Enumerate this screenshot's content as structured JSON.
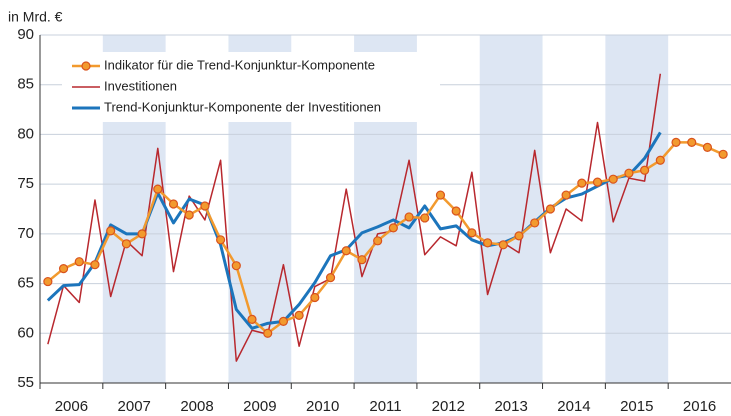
{
  "chart_data": {
    "type": "line",
    "y_axis_label": "in Mrd. €",
    "xlim": [
      2006,
      2017
    ],
    "xticks": [
      2006,
      2007,
      2008,
      2009,
      2010,
      2011,
      2012,
      2013,
      2014,
      2015,
      2016
    ],
    "ylim": [
      55,
      90
    ],
    "yticks": [
      55,
      60,
      65,
      70,
      75,
      80,
      85,
      90
    ],
    "grid": true,
    "band_color": "#dde6f3",
    "x": [
      2006.125,
      2006.375,
      2006.625,
      2006.875,
      2007.125,
      2007.375,
      2007.625,
      2007.875,
      2008.125,
      2008.375,
      2008.625,
      2008.875,
      2009.125,
      2009.375,
      2009.625,
      2009.875,
      2010.125,
      2010.375,
      2010.625,
      2010.875,
      2011.125,
      2011.375,
      2011.625,
      2011.875,
      2012.125,
      2012.375,
      2012.625,
      2012.875,
      2013.125,
      2013.375,
      2013.625,
      2013.875,
      2014.125,
      2014.375,
      2014.625,
      2014.875,
      2015.125,
      2015.375,
      2015.625,
      2015.875,
      2016.125,
      2016.375,
      2016.625,
      2016.875
    ],
    "series": [
      {
        "name": "Indikator für die Trend-Konjunktur-Komponente",
        "color": "#f29a2e",
        "marker_edge": "#d9531e",
        "width": 2.5,
        "markers": true,
        "values": [
          65.2,
          66.5,
          67.2,
          66.9,
          70.3,
          69.0,
          70.0,
          74.5,
          73.0,
          71.9,
          72.8,
          69.4,
          66.8,
          61.4,
          60.0,
          61.2,
          61.8,
          63.6,
          65.6,
          68.3,
          67.4,
          69.3,
          70.6,
          71.7,
          71.6,
          73.9,
          72.3,
          70.1,
          69.1,
          68.9,
          69.8,
          71.1,
          72.5,
          73.9,
          75.1,
          75.2,
          75.5,
          76.1,
          76.4,
          77.4,
          79.2,
          79.2,
          78.7,
          78.0
        ]
      },
      {
        "name": "Investitionen",
        "color": "#b8282e",
        "width": 1.5,
        "markers": false,
        "values": [
          58.9,
          64.8,
          63.1,
          73.4,
          63.7,
          69.3,
          67.8,
          78.6,
          66.2,
          73.8,
          71.4,
          77.4,
          57.2,
          60.3,
          59.9,
          66.9,
          58.7,
          64.7,
          65.5,
          74.5,
          65.7,
          70.0,
          70.3,
          77.4,
          67.9,
          69.7,
          68.8,
          76.2,
          63.9,
          69.1,
          68.1,
          78.4,
          68.1,
          72.5,
          71.3,
          81.2,
          71.2,
          75.6,
          75.3,
          86.1,
          null,
          null,
          null,
          null
        ]
      },
      {
        "name": "Trend-Konjunktur-Komponente der Investitionen",
        "color": "#1c75bc",
        "width": 3,
        "markers": false,
        "values": [
          63.3,
          64.8,
          64.9,
          67.1,
          70.9,
          70.0,
          70.0,
          74.1,
          71.1,
          73.5,
          72.9,
          68.9,
          62.4,
          60.5,
          61.0,
          61.2,
          62.9,
          65.1,
          67.8,
          68.4,
          70.1,
          70.7,
          71.4,
          70.6,
          72.8,
          70.5,
          70.8,
          69.4,
          68.8,
          69.1,
          69.8,
          71.2,
          72.6,
          73.6,
          74.0,
          74.8,
          75.6,
          75.9,
          77.6,
          80.2,
          null,
          null,
          null,
          null
        ]
      }
    ]
  }
}
